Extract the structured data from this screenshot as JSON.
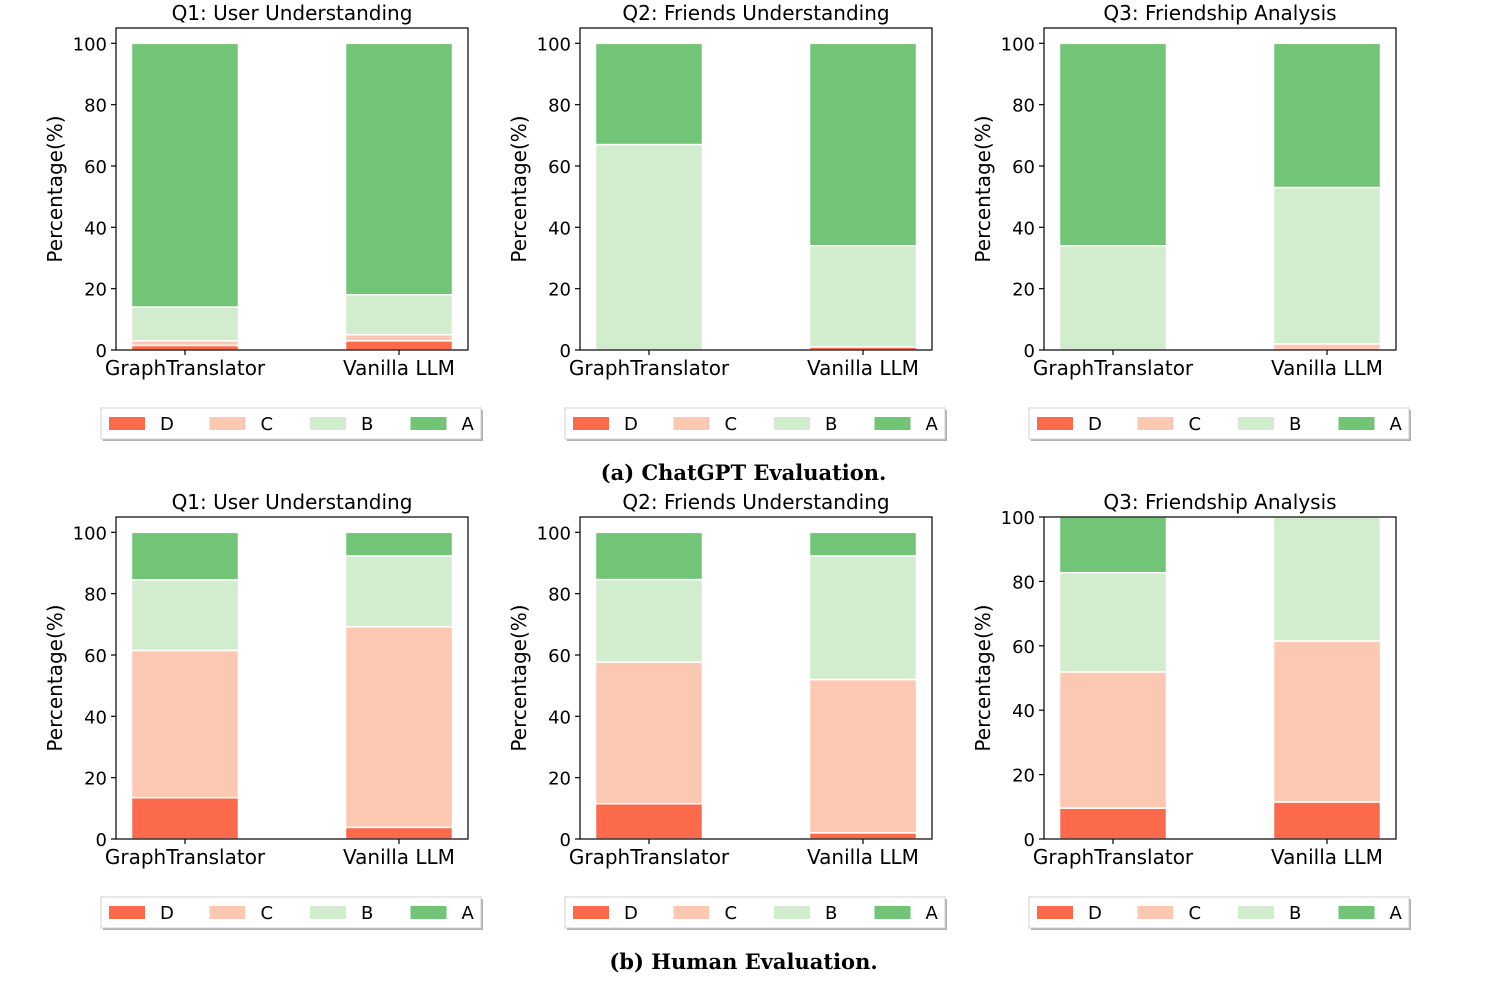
{
  "figure": {
    "caption_a": "(a) ChatGPT Evaluation.",
    "caption_b": "(b) Human Evaluation."
  },
  "colors": {
    "D": "#fc6a4c",
    "C": "#fcc8b2",
    "B": "#d2edcd",
    "A": "#72c476"
  },
  "chart_data": [
    {
      "type": "bar",
      "stacked": true,
      "group": "ChatGPT Evaluation",
      "title": "Q1: User Understanding",
      "xlabel": "",
      "ylabel": "Percentage(%)",
      "ylim": [
        0,
        105
      ],
      "yticks": [
        0,
        20,
        40,
        60,
        80,
        100
      ],
      "categories": [
        "GraphTranslator",
        "Vanilla LLM"
      ],
      "legend": "bottom-center",
      "series": [
        {
          "name": "D",
          "values": [
            1.5,
            3
          ]
        },
        {
          "name": "C",
          "values": [
            1.5,
            2
          ]
        },
        {
          "name": "B",
          "values": [
            11,
            13
          ]
        },
        {
          "name": "A",
          "values": [
            86,
            82
          ]
        }
      ]
    },
    {
      "type": "bar",
      "stacked": true,
      "group": "ChatGPT Evaluation",
      "title": "Q2: Friends Understanding",
      "xlabel": "",
      "ylabel": "Percentage(%)",
      "ylim": [
        0,
        105
      ],
      "yticks": [
        0,
        20,
        40,
        60,
        80,
        100
      ],
      "categories": [
        "GraphTranslator",
        "Vanilla LLM"
      ],
      "legend": "bottom-center",
      "series": [
        {
          "name": "D",
          "values": [
            0,
            1
          ]
        },
        {
          "name": "C",
          "values": [
            0,
            0
          ]
        },
        {
          "name": "B",
          "values": [
            67,
            33
          ]
        },
        {
          "name": "A",
          "values": [
            33,
            66
          ]
        }
      ]
    },
    {
      "type": "bar",
      "stacked": true,
      "group": "ChatGPT Evaluation",
      "title": "Q3: Friendship Analysis",
      "xlabel": "",
      "ylabel": "Percentage(%)",
      "ylim": [
        0,
        105
      ],
      "yticks": [
        0,
        20,
        40,
        60,
        80,
        100
      ],
      "categories": [
        "GraphTranslator",
        "Vanilla LLM"
      ],
      "legend": "bottom-center",
      "series": [
        {
          "name": "D",
          "values": [
            0,
            0
          ]
        },
        {
          "name": "C",
          "values": [
            0,
            2
          ]
        },
        {
          "name": "B",
          "values": [
            34,
            51
          ]
        },
        {
          "name": "A",
          "values": [
            66,
            47
          ]
        }
      ]
    },
    {
      "type": "bar",
      "stacked": true,
      "group": "Human Evaluation",
      "title": "Q1: User Understanding",
      "xlabel": "",
      "ylabel": "Percentage(%)",
      "ylim": [
        0,
        105
      ],
      "yticks": [
        0,
        20,
        40,
        60,
        80,
        100
      ],
      "categories": [
        "GraphTranslator",
        "Vanilla LLM"
      ],
      "legend": "bottom-center",
      "series": [
        {
          "name": "D",
          "values": [
            13.5,
            3.8
          ]
        },
        {
          "name": "C",
          "values": [
            48,
            65.4
          ]
        },
        {
          "name": "B",
          "values": [
            23,
            23.1
          ]
        },
        {
          "name": "A",
          "values": [
            15.5,
            7.7
          ]
        }
      ]
    },
    {
      "type": "bar",
      "stacked": true,
      "group": "Human Evaluation",
      "title": "Q2: Friends Understanding",
      "xlabel": "",
      "ylabel": "Percentage(%)",
      "ylim": [
        0,
        105
      ],
      "yticks": [
        0,
        20,
        40,
        60,
        80,
        100
      ],
      "categories": [
        "GraphTranslator",
        "Vanilla LLM"
      ],
      "legend": "bottom-center",
      "series": [
        {
          "name": "D",
          "values": [
            11.5,
            2
          ]
        },
        {
          "name": "C",
          "values": [
            46.2,
            50
          ]
        },
        {
          "name": "B",
          "values": [
            26.9,
            40.3
          ]
        },
        {
          "name": "A",
          "values": [
            15.4,
            7.7
          ]
        }
      ]
    },
    {
      "type": "bar",
      "stacked": true,
      "group": "Human Evaluation",
      "title": "Q3: Friendship Analysis",
      "xlabel": "",
      "ylabel": "Percentage(%)",
      "ylim": [
        0,
        100
      ],
      "yticks": [
        0,
        20,
        40,
        60,
        80,
        100
      ],
      "categories": [
        "GraphTranslator",
        "Vanilla LLM"
      ],
      "legend": "bottom-center",
      "series": [
        {
          "name": "D",
          "values": [
            9.6,
            11.5
          ]
        },
        {
          "name": "C",
          "values": [
            42.3,
            50
          ]
        },
        {
          "name": "B",
          "values": [
            30.8,
            38.5
          ]
        },
        {
          "name": "A",
          "values": [
            17.3,
            0
          ]
        }
      ]
    }
  ]
}
